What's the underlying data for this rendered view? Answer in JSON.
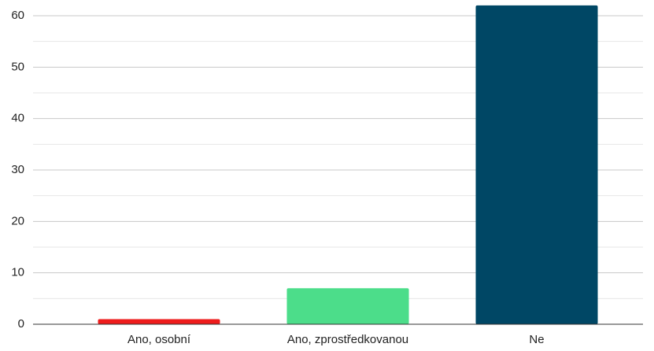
{
  "chart_data": {
    "type": "bar",
    "categories": [
      "Ano, osobní",
      "Ano, zprostředkovanou",
      "Ne"
    ],
    "values": [
      1,
      7,
      62
    ],
    "colors": [
      "#ee1c1c",
      "#4cdd8a",
      "#004765"
    ],
    "ylim": [
      0,
      63
    ],
    "yticks": [
      0,
      10,
      20,
      30,
      40,
      50,
      60
    ],
    "minor_yticks": [
      5,
      15,
      25,
      35,
      45,
      55
    ],
    "grid": true
  }
}
